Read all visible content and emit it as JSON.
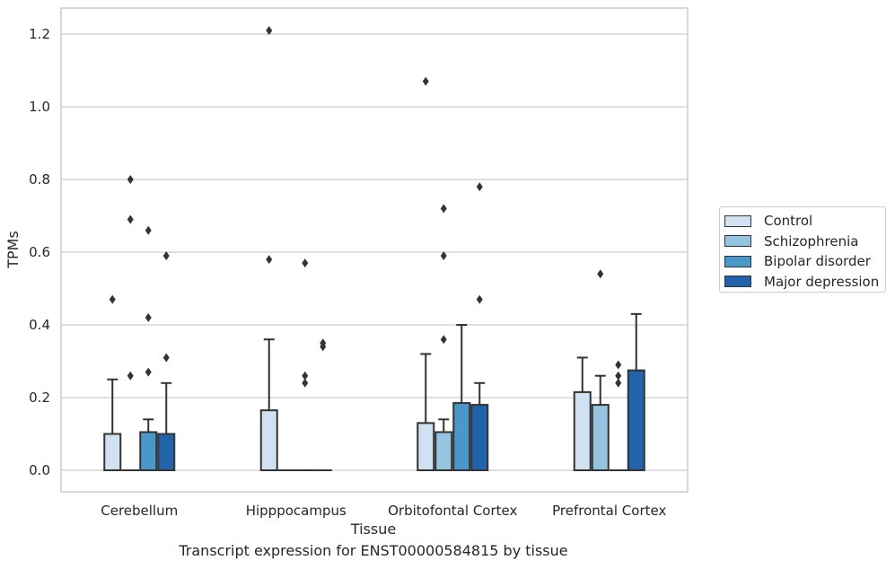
{
  "chart_data": {
    "type": "bar",
    "xlabel": "Tissue",
    "ylabel": "TPMs",
    "ylim": [
      -0.06,
      1.27
    ],
    "yticks": [
      "0.0",
      "0.2",
      "0.4",
      "0.6",
      "0.8",
      "1.0",
      "1.2"
    ],
    "grid": true,
    "legend_position": "right",
    "categories": [
      "Cerebellum",
      "Hipppocampus",
      "Orbitofontal Cortex",
      "Prefrontal Cortex"
    ],
    "series": [
      {
        "name": "Control",
        "color": "#d0e1f2",
        "values": [
          0.1,
          0.165,
          0.13,
          0.215
        ],
        "error_upper": [
          0.25,
          0.36,
          0.32,
          0.31
        ],
        "outliers": [
          [
            0.47
          ],
          [
            1.21,
            0.58
          ],
          [
            1.07
          ],
          []
        ]
      },
      {
        "name": "Schizophrenia",
        "color": "#94c4df",
        "values": [
          0.0,
          0.0,
          0.105,
          0.18
        ],
        "error_upper": [
          null,
          null,
          0.14,
          0.26
        ],
        "outliers": [
          [
            0.8,
            0.69,
            0.26
          ],
          [],
          [
            0.72,
            0.59,
            0.36
          ],
          [
            0.54
          ]
        ]
      },
      {
        "name": "Bipolar disorder",
        "color": "#4a98c9",
        "values": [
          0.105,
          0.0,
          0.185,
          0.0
        ],
        "error_upper": [
          0.14,
          null,
          0.4,
          null
        ],
        "outliers": [
          [
            0.66,
            0.42,
            0.27
          ],
          [
            0.57,
            0.26,
            0.24
          ],
          [],
          [
            0.29,
            0.26,
            0.24
          ]
        ]
      },
      {
        "name": "Major depression",
        "color": "#2164ab",
        "values": [
          0.1,
          0.0,
          0.18,
          0.275
        ],
        "error_upper": [
          0.24,
          null,
          0.24,
          0.43
        ],
        "outliers": [
          [
            0.59,
            0.31
          ],
          [
            0.35,
            0.34
          ],
          [
            0.78,
            0.47
          ],
          []
        ]
      }
    ],
    "caption": "Transcript expression for ENST00000584815 by tissue"
  }
}
